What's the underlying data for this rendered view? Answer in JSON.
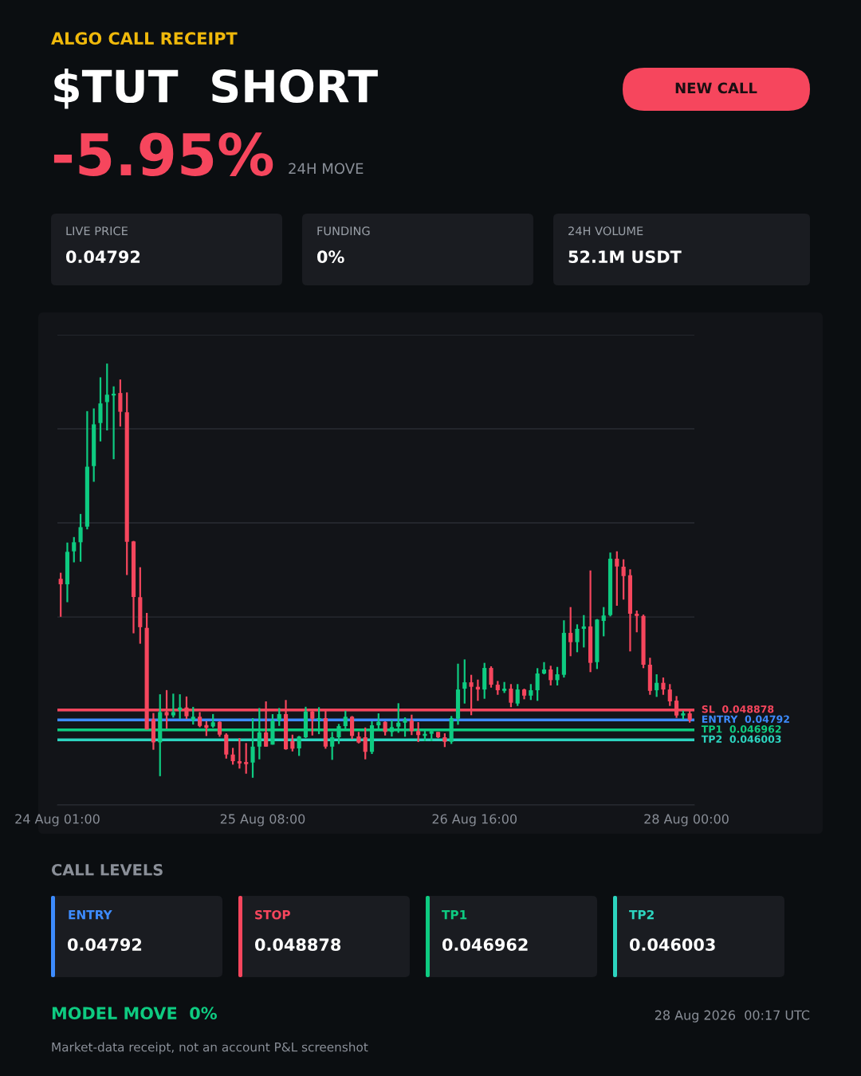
{
  "chart_data": {
    "type": "candlestick",
    "title": "$TUT  SHORT",
    "x": [
      "2026-08-24T01:30",
      "2026-08-24T02:30",
      "2026-08-24T03:30",
      "2026-08-24T04:30",
      "2026-08-24T05:30",
      "2026-08-24T06:30",
      "2026-08-24T07:30",
      "2026-08-24T08:30",
      "2026-08-24T09:30",
      "2026-08-24T10:30",
      "2026-08-24T11:30",
      "2026-08-24T12:30",
      "2026-08-24T13:30",
      "2026-08-24T14:30",
      "2026-08-24T15:30",
      "2026-08-24T16:30",
      "2026-08-24T17:30",
      "2026-08-24T18:30",
      "2026-08-24T19:30",
      "2026-08-24T20:30",
      "2026-08-24T21:30",
      "2026-08-24T22:30",
      "2026-08-24T23:30",
      "2026-08-25T00:30",
      "2026-08-25T01:30",
      "2026-08-25T02:30",
      "2026-08-25T03:30",
      "2026-08-25T04:30",
      "2026-08-25T05:30",
      "2026-08-25T06:30",
      "2026-08-25T07:30",
      "2026-08-25T08:30",
      "2026-08-25T09:30",
      "2026-08-25T10:30",
      "2026-08-25T11:30",
      "2026-08-25T12:30",
      "2026-08-25T13:30",
      "2026-08-25T14:30",
      "2026-08-25T15:30",
      "2026-08-25T16:30",
      "2026-08-25T17:30",
      "2026-08-25T18:30",
      "2026-08-25T19:30",
      "2026-08-25T20:30",
      "2026-08-25T21:30",
      "2026-08-25T22:30",
      "2026-08-25T23:30",
      "2026-08-26T00:30",
      "2026-08-26T01:30",
      "2026-08-26T02:30",
      "2026-08-26T03:30",
      "2026-08-26T04:30",
      "2026-08-26T05:30",
      "2026-08-26T06:30",
      "2026-08-26T07:30",
      "2026-08-26T08:30",
      "2026-08-26T09:30",
      "2026-08-26T10:30",
      "2026-08-26T11:30",
      "2026-08-26T12:30",
      "2026-08-26T13:30",
      "2026-08-26T14:30",
      "2026-08-26T15:30",
      "2026-08-26T16:30",
      "2026-08-26T17:30",
      "2026-08-26T18:30",
      "2026-08-26T19:30",
      "2026-08-26T20:30",
      "2026-08-26T21:30",
      "2026-08-26T22:30",
      "2026-08-26T23:30",
      "2026-08-27T00:30",
      "2026-08-27T01:30",
      "2026-08-27T02:30",
      "2026-08-27T03:30",
      "2026-08-27T04:30",
      "2026-08-27T05:30",
      "2026-08-27T06:30",
      "2026-08-27T07:30",
      "2026-08-27T08:30",
      "2026-08-27T09:30",
      "2026-08-27T10:30",
      "2026-08-27T11:30",
      "2026-08-27T12:30",
      "2026-08-27T13:30",
      "2026-08-27T14:30",
      "2026-08-27T15:30",
      "2026-08-27T16:30",
      "2026-08-27T17:30",
      "2026-08-27T18:30",
      "2026-08-27T19:30",
      "2026-08-27T20:30",
      "2026-08-27T21:30",
      "2026-08-27T22:30",
      "2026-08-27T23:30",
      "2026-08-28T00:30"
    ],
    "ohlc": [
      [
        0.06149,
        0.06207,
        0.05784,
        0.06096
      ],
      [
        0.06096,
        0.06497,
        0.05924,
        0.06408
      ],
      [
        0.06413,
        0.0655,
        0.06307,
        0.065
      ],
      [
        0.065,
        0.06772,
        0.06313,
        0.06645
      ],
      [
        0.0665,
        0.0776,
        0.06624,
        0.07226
      ],
      [
        0.07232,
        0.07786,
        0.07081,
        0.07633
      ],
      [
        0.07646,
        0.08085,
        0.07469,
        0.07834
      ],
      [
        0.07847,
        0.08217,
        0.07575,
        0.07918
      ],
      [
        0.0791,
        0.07998,
        0.07298,
        0.07927
      ],
      [
        0.07934,
        0.08064,
        0.07612,
        0.07754
      ],
      [
        0.0775,
        0.0794,
        0.06185,
        0.06505
      ],
      [
        0.06508,
        0.06513,
        0.05625,
        0.05974
      ],
      [
        0.05972,
        0.0626,
        0.05525,
        0.05684
      ],
      [
        0.05678,
        0.05821,
        0.04701,
        0.04701
      ],
      [
        0.04801,
        0.04859,
        0.04506,
        0.04577
      ],
      [
        0.04577,
        0.05039,
        0.04252,
        0.04868
      ],
      [
        0.04868,
        0.05079,
        0.04709,
        0.04836
      ],
      [
        0.04836,
        0.05045,
        0.04815,
        0.04868
      ],
      [
        0.04886,
        0.05039,
        0.04801,
        0.04912
      ],
      [
        0.04912,
        0.05018,
        0.04801,
        0.04828
      ],
      [
        0.04788,
        0.04918,
        0.04748,
        0.04823
      ],
      [
        0.04823,
        0.04868,
        0.04722,
        0.04735
      ],
      [
        0.04743,
        0.04781,
        0.04638,
        0.04717
      ],
      [
        0.0473,
        0.04849,
        0.04717,
        0.0477
      ],
      [
        0.04774,
        0.04779,
        0.04631,
        0.04651
      ],
      [
        0.04651,
        0.04664,
        0.04421,
        0.0446
      ],
      [
        0.0446,
        0.04524,
        0.04363,
        0.04396
      ],
      [
        0.04396,
        0.04618,
        0.04325,
        0.04375
      ],
      [
        0.04388,
        0.0457,
        0.04276,
        0.04368
      ],
      [
        0.04383,
        0.0481,
        0.04237,
        0.04536
      ],
      [
        0.04536,
        0.04907,
        0.04414,
        0.04672
      ],
      [
        0.04672,
        0.04971,
        0.04536,
        0.04536
      ],
      [
        0.04555,
        0.04848,
        0.04555,
        0.04787
      ],
      [
        0.04787,
        0.04907,
        0.04735,
        0.04848
      ],
      [
        0.04848,
        0.04984,
        0.04506,
        0.04511
      ],
      [
        0.04588,
        0.04651,
        0.0449,
        0.04516
      ],
      [
        0.04519,
        0.04639,
        0.04447,
        0.04633
      ],
      [
        0.04626,
        0.04919,
        0.04618,
        0.04873
      ],
      [
        0.04873,
        0.04899,
        0.04643,
        0.04804
      ],
      [
        0.04792,
        0.04915,
        0.04656,
        0.0481
      ],
      [
        0.0481,
        0.04881,
        0.04516,
        0.04536
      ],
      [
        0.04536,
        0.04677,
        0.04409,
        0.04626
      ],
      [
        0.04626,
        0.04754,
        0.04562,
        0.04733
      ],
      [
        0.04733,
        0.04881,
        0.0471,
        0.04823
      ],
      [
        0.04823,
        0.0483,
        0.04608,
        0.04639
      ],
      [
        0.04633,
        0.04677,
        0.04567,
        0.04575
      ],
      [
        0.04626,
        0.0472,
        0.04414,
        0.04486
      ],
      [
        0.04486,
        0.04779,
        0.04465,
        0.04741
      ],
      [
        0.04741,
        0.04856,
        0.04689,
        0.04774
      ],
      [
        0.04774,
        0.04779,
        0.04643,
        0.04677
      ],
      [
        0.04677,
        0.04792,
        0.04633,
        0.04723
      ],
      [
        0.04728,
        0.04953,
        0.04669,
        0.04766
      ],
      [
        0.04766,
        0.04817,
        0.04631,
        0.04792
      ],
      [
        0.04787,
        0.04843,
        0.04647,
        0.04685
      ],
      [
        0.04685,
        0.04771,
        0.0458,
        0.04647
      ],
      [
        0.04639,
        0.0471,
        0.04588,
        0.04659
      ],
      [
        0.04659,
        0.0471,
        0.04588,
        0.04685
      ],
      [
        0.04677,
        0.04677,
        0.04618,
        0.04626
      ],
      [
        0.04626,
        0.04664,
        0.04532,
        0.04582
      ],
      [
        0.04582,
        0.0483,
        0.04562,
        0.0481
      ],
      [
        0.04804,
        0.05333,
        0.04746,
        0.05085
      ],
      [
        0.05093,
        0.05374,
        0.0495,
        0.05154
      ],
      [
        0.05154,
        0.05226,
        0.04838,
        0.05111
      ],
      [
        0.05111,
        0.0518,
        0.04976,
        0.05085
      ],
      [
        0.05085,
        0.05341,
        0.04996,
        0.05292
      ],
      [
        0.05292,
        0.05308,
        0.05103,
        0.05131
      ],
      [
        0.05131,
        0.05167,
        0.05034,
        0.05078
      ],
      [
        0.05072,
        0.05157,
        0.05052,
        0.05093
      ],
      [
        0.05093,
        0.05137,
        0.04915,
        0.04958
      ],
      [
        0.0495,
        0.05137,
        0.04927,
        0.05085
      ],
      [
        0.05085,
        0.05093,
        0.04991,
        0.05026
      ],
      [
        0.05026,
        0.05137,
        0.04984,
        0.05078
      ],
      [
        0.05078,
        0.0529,
        0.04976,
        0.05239
      ],
      [
        0.05239,
        0.05348,
        0.05231,
        0.05277
      ],
      [
        0.05277,
        0.05313,
        0.05124,
        0.05175
      ],
      [
        0.05175,
        0.05302,
        0.05124,
        0.05231
      ],
      [
        0.05226,
        0.0575,
        0.052,
        0.05629
      ],
      [
        0.05629,
        0.05877,
        0.05405,
        0.0554
      ],
      [
        0.0554,
        0.05711,
        0.05443,
        0.05668
      ],
      [
        0.05668,
        0.058,
        0.05489,
        0.05691
      ],
      [
        0.05691,
        0.06229,
        0.05252,
        0.05341
      ],
      [
        0.05348,
        0.05762,
        0.05282,
        0.05757
      ],
      [
        0.05744,
        0.05877,
        0.05596,
        0.05796
      ],
      [
        0.058,
        0.06401,
        0.05788,
        0.06342
      ],
      [
        0.06342,
        0.06413,
        0.0589,
        0.06267
      ],
      [
        0.06265,
        0.06336,
        0.05949,
        0.06175
      ],
      [
        0.06183,
        0.0624,
        0.05451,
        0.05813
      ],
      [
        0.05813,
        0.05844,
        0.05635,
        0.05792
      ],
      [
        0.05792,
        0.05805,
        0.0529,
        0.05323
      ],
      [
        0.05323,
        0.0539,
        0.05034,
        0.05072
      ],
      [
        0.05078,
        0.05231,
        0.05014,
        0.05149
      ],
      [
        0.05149,
        0.052,
        0.05034,
        0.05085
      ],
      [
        0.05085,
        0.05137,
        0.04927,
        0.04971
      ],
      [
        0.04978,
        0.05022,
        0.04812,
        0.04835
      ],
      [
        0.04835,
        0.04881,
        0.04797,
        0.04856
      ],
      [
        0.04856,
        0.04881,
        0.04766,
        0.04792
      ]
    ],
    "colors": [
      "#f6465d",
      "#0ecb81",
      "#0ecb81",
      "#0ecb81",
      "#0ecb81",
      "#0ecb81",
      "#0ecb81",
      "#0ecb81",
      "#0ecb81",
      "#f6465d",
      "#f6465d",
      "#f6465d",
      "#f6465d",
      "#f6465d",
      "#f6465d",
      "#0ecb81",
      "#f6465d",
      "#0ecb81",
      "#0ecb81",
      "#f6465d",
      "#0ecb81",
      "#f6465d",
      "#f6465d",
      "#0ecb81",
      "#f6465d",
      "#f6465d",
      "#f6465d",
      "#f6465d",
      "#f6465d",
      "#0ecb81",
      "#0ecb81",
      "#f6465d",
      "#0ecb81",
      "#0ecb81",
      "#f6465d",
      "#f6465d",
      "#0ecb81",
      "#0ecb81",
      "#f6465d",
      "#0ecb81",
      "#f6465d",
      "#0ecb81",
      "#0ecb81",
      "#0ecb81",
      "#f6465d",
      "#f6465d",
      "#f6465d",
      "#0ecb81",
      "#0ecb81",
      "#f6465d",
      "#0ecb81",
      "#0ecb81",
      "#0ecb81",
      "#f6465d",
      "#f6465d",
      "#0ecb81",
      "#0ecb81",
      "#f6465d",
      "#f6465d",
      "#0ecb81",
      "#0ecb81",
      "#0ecb81",
      "#f6465d",
      "#f6465d",
      "#0ecb81",
      "#f6465d",
      "#f6465d",
      "#0ecb81",
      "#f6465d",
      "#0ecb81",
      "#f6465d",
      "#0ecb81",
      "#0ecb81",
      "#0ecb81",
      "#f6465d",
      "#0ecb81",
      "#0ecb81",
      "#f6465d",
      "#0ecb81",
      "#0ecb81",
      "#f6465d",
      "#0ecb81",
      "#0ecb81",
      "#0ecb81",
      "#f6465d",
      "#f6465d",
      "#f6465d",
      "#f6465d",
      "#f6465d",
      "#f6465d",
      "#0ecb81",
      "#f6465d",
      "#f6465d",
      "#f6465d",
      "#0ecb81",
      "#f6465d"
    ],
    "xlim": [
      "2026-08-24T01:00",
      "2026-08-28T01:12"
    ],
    "xticks": [
      {
        "value": "2026-08-24T01:00",
        "label": "24 Aug 01:00"
      },
      {
        "value": "2026-08-25T08:00",
        "label": "25 Aug 08:00"
      },
      {
        "value": "2026-08-26T16:00",
        "label": "26 Aug 16:00"
      },
      {
        "value": "2026-08-28T00:00",
        "label": "28 Aug 00:00"
      }
    ],
    "ylim": [
      0.03975,
      0.08494
    ],
    "yticks": [
      {
        "value": 0.03975,
        "label": null
      },
      {
        "value": 0.04879,
        "label": null
      },
      {
        "value": 0.05782,
        "label": null
      },
      {
        "value": 0.06686,
        "label": null
      },
      {
        "value": 0.0759,
        "label": null
      },
      {
        "value": 0.08494,
        "label": null
      }
    ],
    "grid": "y",
    "tick_labels": "x",
    "ref_lines": [
      {
        "axis": "y",
        "value": 0.048878,
        "label": "SL  0.048878",
        "color": "#f6465d",
        "line_style": "solid"
      },
      {
        "axis": "y",
        "value": 0.04792,
        "label": "ENTRY  0.04792",
        "color": "#3d8bfd",
        "line_style": "solid"
      },
      {
        "axis": "y",
        "value": 0.046962,
        "label": "TP1  0.046962",
        "color": "#0ecb81",
        "line_style": "solid"
      },
      {
        "axis": "y",
        "value": 0.046003,
        "label": "TP2  0.046003",
        "color": "#2dd4bf",
        "line_style": "solid"
      }
    ],
    "annotations": [
      "ALGO CALL RECEIPT",
      "NEW CALL",
      "-5.95%",
      "24H MOVE",
      "LIVE PRICE",
      "0.04792",
      "FUNDING",
      "0%",
      "24H VOLUME",
      "52.1M USDT",
      "CALL LEVELS",
      "ENTRY",
      "0.04792",
      "STOP",
      "0.048878",
      "TP1",
      "0.046962",
      "TP2",
      "0.046003",
      "MODEL MOVE  0%",
      "28 Aug 2026  00:17 UTC",
      "Market-data receipt, not an account P&L screenshot"
    ]
  }
}
